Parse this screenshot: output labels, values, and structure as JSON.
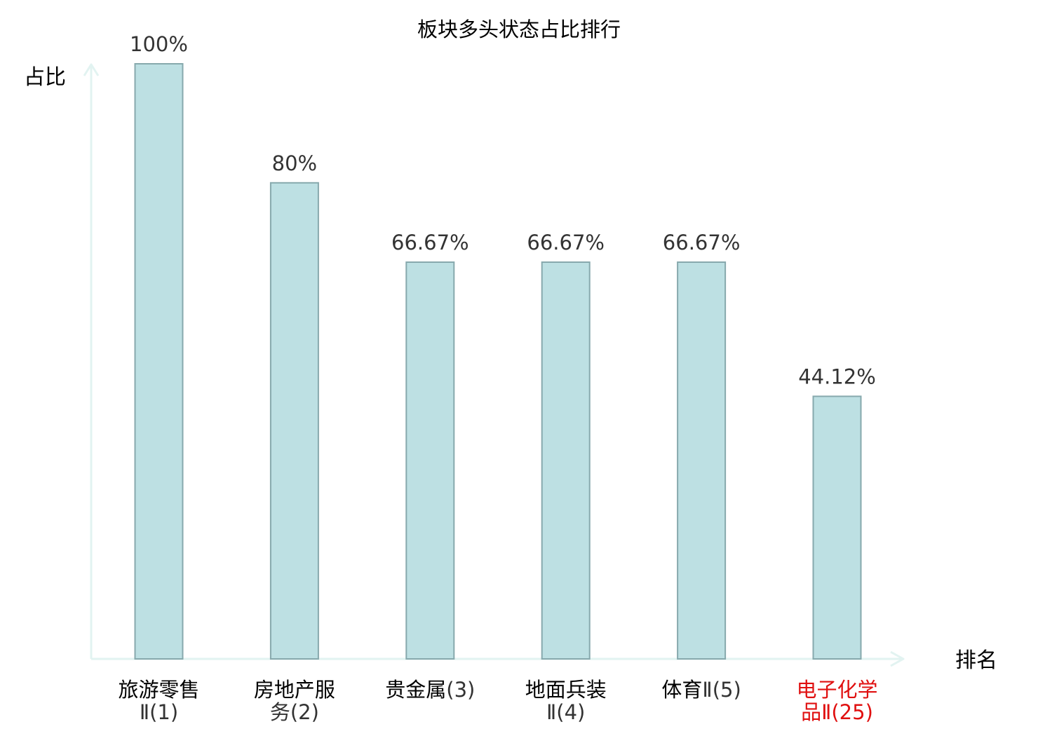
{
  "chart_data": {
    "type": "bar",
    "title": "板块多头状态占比排行",
    "ylabel": "占比",
    "xlabel": "排名",
    "ylim": [
      0,
      100
    ],
    "grid": false,
    "categories": [
      [
        "旅游零售",
        "Ⅱ(1)"
      ],
      [
        "房地产服",
        "务(2)"
      ],
      [
        "贵金属",
        "(3)"
      ],
      [
        "地面兵装",
        "Ⅱ(4)"
      ],
      [
        "体育",
        "Ⅱ(5)"
      ],
      [
        "电子化学",
        "品Ⅱ(25)"
      ]
    ],
    "values": [
      100,
      80,
      66.67,
      66.67,
      66.67,
      44.12
    ],
    "value_labels": [
      "100%",
      "80%",
      "66.67%",
      "66.67%",
      "66.67%",
      "44.12%"
    ],
    "highlight_index": 5,
    "colors": {
      "bar_fill": "#bde0e3",
      "bar_stroke": "#87a9ad",
      "axis": "#e2f3f1",
      "text": "#333333",
      "highlight": "#e01010"
    }
  }
}
